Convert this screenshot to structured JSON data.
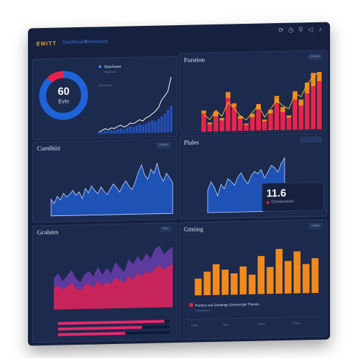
{
  "app": {
    "brand": "EMITT",
    "nav": [
      "Dashboard",
      "Timestamp"
    ],
    "toolbar_icons": [
      "refresh-icon",
      "clock-icon",
      "filter-icon",
      "share-icon",
      "bell-icon",
      "more-icon"
    ]
  },
  "colors": {
    "background": "#16213f",
    "panel": "#1c2a4d",
    "accent_blue": "#2f6be0",
    "accent_red": "#e8244c",
    "accent_orange": "#f08a1c",
    "accent_pink": "#e8276b"
  },
  "panels": {
    "kpi": {
      "value": "60",
      "unit": "Evts",
      "legend_title": "Haschstee",
      "legend_sub": "Rassiusd",
      "list_label": "Rossuoicts",
      "ring_percent": 0.88
    },
    "forstion": {
      "title": "Forstion",
      "control": "Dates"
    },
    "cumulative": {
      "title": "Cumlhiiz",
      "control": "Weels"
    },
    "plates": {
      "title": "Plales",
      "metric_value": "11.6",
      "metric_label": "Consnrrsion"
    },
    "goalstes": {
      "title": "Gcalstes",
      "control": "Min"
    },
    "gmiing": {
      "title": "Gmiing",
      "control": "Swse",
      "legend_text": "Panleur sat Srwdings Gowwnnge Thenes",
      "legend_sub": "Famodewrs",
      "footer_cols": [
        "Vorde",
        "Nsit",
        "Trove",
        "Parse"
      ]
    }
  },
  "chart_data": [
    {
      "type": "bar",
      "name": "kpi-growth-bars",
      "categories": [
        "1",
        "2",
        "3",
        "4",
        "5",
        "6",
        "7",
        "8",
        "9",
        "10",
        "11",
        "12",
        "13",
        "14",
        "15",
        "16",
        "17",
        "18",
        "19",
        "20",
        "21",
        "22",
        "23",
        "24"
      ],
      "values": [
        2,
        3,
        5,
        4,
        6,
        5,
        7,
        8,
        6,
        9,
        11,
        10,
        12,
        14,
        13,
        15,
        17,
        20,
        18,
        22,
        26,
        30,
        36,
        42
      ],
      "overlay_line": [
        3,
        5,
        8,
        6,
        9,
        8,
        11,
        13,
        10,
        12,
        16,
        15,
        18,
        21,
        19,
        24,
        26,
        30,
        34,
        40,
        52,
        58,
        66,
        88
      ],
      "ylim": [
        0,
        100
      ]
    },
    {
      "type": "bar",
      "name": "forstion-stacked-bars",
      "categories": [
        "1",
        "2",
        "3",
        "4",
        "5",
        "6",
        "7",
        "8",
        "9",
        "10",
        "11",
        "12",
        "13",
        "14",
        "15",
        "16",
        "17",
        "18",
        "19",
        "20"
      ],
      "series": [
        {
          "values": [
            30,
            12,
            25,
            18,
            55,
            40,
            20,
            10,
            22,
            35,
            15,
            28,
            45,
            30,
            20,
            50,
            40,
            60,
            72,
            80
          ]
        },
        {
          "values": [
            5,
            3,
            8,
            4,
            10,
            6,
            5,
            2,
            6,
            9,
            3,
            6,
            12,
            8,
            4,
            14,
            10,
            18,
            22,
            15
          ]
        }
      ],
      "line": [
        28,
        20,
        35,
        25,
        48,
        38,
        25,
        18,
        30,
        42,
        22,
        35,
        50,
        40,
        35,
        60,
        55,
        75,
        88,
        95
      ],
      "ylim": [
        0,
        100
      ]
    },
    {
      "type": "area",
      "name": "cumulative-area",
      "x": [
        "1",
        "2",
        "3",
        "4",
        "5",
        "6",
        "7",
        "8",
        "9",
        "10",
        "11",
        "12",
        "13",
        "14",
        "15",
        "16",
        "17",
        "18",
        "19",
        "20",
        "21",
        "22",
        "23",
        "24",
        "25",
        "26",
        "27",
        "28",
        "29",
        "30",
        "31",
        "32",
        "33",
        "34",
        "35",
        "36",
        "37",
        "38",
        "39",
        "40"
      ],
      "values": [
        30,
        22,
        35,
        28,
        40,
        33,
        38,
        45,
        36,
        42,
        30,
        48,
        40,
        52,
        44,
        38,
        50,
        42,
        36,
        46,
        55,
        48,
        40,
        52,
        60,
        50,
        44,
        58,
        75,
        88,
        70,
        62,
        80,
        72,
        90,
        68,
        58,
        72,
        64,
        55
      ],
      "ylim": [
        0,
        100
      ]
    },
    {
      "type": "area",
      "name": "plates-area",
      "x": [
        "1",
        "2",
        "3",
        "4",
        "5",
        "6",
        "7",
        "8",
        "9",
        "10",
        "11",
        "12",
        "13",
        "14",
        "15",
        "16",
        "17",
        "18",
        "19",
        "20",
        "21",
        "22",
        "23",
        "24"
      ],
      "values": [
        40,
        55,
        45,
        30,
        50,
        42,
        60,
        55,
        48,
        62,
        70,
        58,
        50,
        64,
        72,
        68,
        75,
        60,
        70,
        82,
        78,
        70,
        85,
        95
      ],
      "ylim": [
        0,
        100
      ]
    },
    {
      "type": "area",
      "name": "goalstes-area",
      "x": [
        "1",
        "2",
        "3",
        "4",
        "5",
        "6",
        "7",
        "8",
        "9",
        "10",
        "11",
        "12",
        "13",
        "14",
        "15",
        "16",
        "17",
        "18",
        "19",
        "20",
        "21",
        "22",
        "23",
        "24",
        "25",
        "26",
        "27",
        "28"
      ],
      "series": [
        {
          "values": [
            30,
            34,
            28,
            32,
            38,
            30,
            26,
            34,
            36,
            30,
            40,
            32,
            38,
            34,
            44,
            40,
            36,
            46,
            40,
            50,
            44,
            52,
            48,
            56,
            60,
            54,
            58,
            62
          ]
        },
        {
          "values": [
            45,
            52,
            40,
            48,
            56,
            44,
            38,
            50,
            54,
            46,
            60,
            48,
            58,
            50,
            66,
            58,
            52,
            70,
            62,
            74,
            66,
            78,
            70,
            84,
            88,
            76,
            82,
            86
          ]
        }
      ],
      "bars": [
        0.95,
        0.75,
        0.6
      ],
      "ylim": [
        0,
        100
      ]
    },
    {
      "type": "bar",
      "name": "gmiing-bars",
      "categories": [
        "1",
        "2",
        "3",
        "4",
        "5",
        "6",
        "7",
        "8",
        "9",
        "10",
        "11",
        "12",
        "13",
        "14"
      ],
      "values": [
        30,
        42,
        55,
        45,
        38,
        50,
        35,
        68,
        48,
        80,
        58,
        75,
        52,
        62
      ],
      "ylim": [
        0,
        100
      ]
    }
  ]
}
